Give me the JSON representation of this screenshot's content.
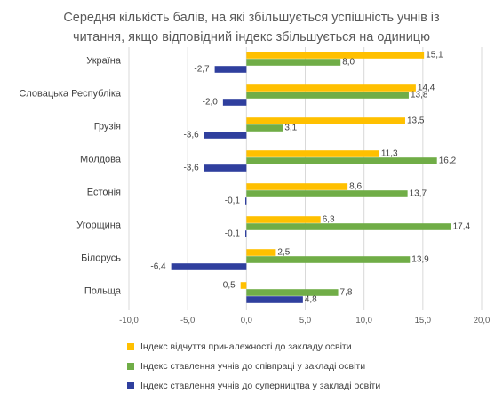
{
  "chart_data": {
    "type": "bar",
    "orientation": "horizontal",
    "title": "Середня кількість балів, на які збільшується успішність учнів із читання, якщо відповідний індекс збільшується на одиницю",
    "title_lines": [
      "Середня кількість балів, на які збільшується успішність учнів із",
      "читання, якщо відповідний індекс збільшується на одиницю"
    ],
    "categories": [
      "Україна",
      "Словацька Республіка",
      "Грузія",
      "Молдова",
      "Естонія",
      "Угорщина",
      "Білорусь",
      "Польща"
    ],
    "series": [
      {
        "name": "Індекс відчуття приналежності до закладу освіти",
        "color": "#FFC000",
        "values": [
          15.1,
          14.4,
          13.5,
          11.3,
          8.6,
          6.3,
          2.5,
          -0.5
        ],
        "labels": [
          "15,1",
          "14,4",
          "13,5",
          "11,3",
          "8,6",
          "6,3",
          "2,5",
          "-0,5"
        ]
      },
      {
        "name": "Індекс ставлення учнів до співпраці у закладі освіти",
        "color": "#70AD47",
        "values": [
          8.0,
          13.8,
          3.1,
          16.2,
          13.7,
          17.4,
          13.9,
          7.8
        ],
        "labels": [
          "8,0",
          "13,8",
          "3,1",
          "16,2",
          "13,7",
          "17,4",
          "13,9",
          "7,8"
        ]
      },
      {
        "name": "Індекс ставлення учнів до суперництва у закладі освіти",
        "color": "#2F3F9E",
        "values": [
          -2.7,
          -2.0,
          -3.6,
          -3.6,
          -0.1,
          -0.1,
          -6.4,
          4.8
        ],
        "labels": [
          "-2,7",
          "-2,0",
          "-3,6",
          "-3,6",
          "-0,1",
          "-0,1",
          "-6,4",
          "4,8"
        ]
      }
    ],
    "xlim": [
      -10,
      20
    ],
    "xticks": [
      -10,
      -5,
      0,
      5,
      10,
      15,
      20
    ],
    "xtick_labels": [
      "-10,0",
      "-5,0",
      "0,0",
      "5,0",
      "10,0",
      "15,0",
      "20,0"
    ],
    "grid": true,
    "legend_position": "bottom"
  }
}
